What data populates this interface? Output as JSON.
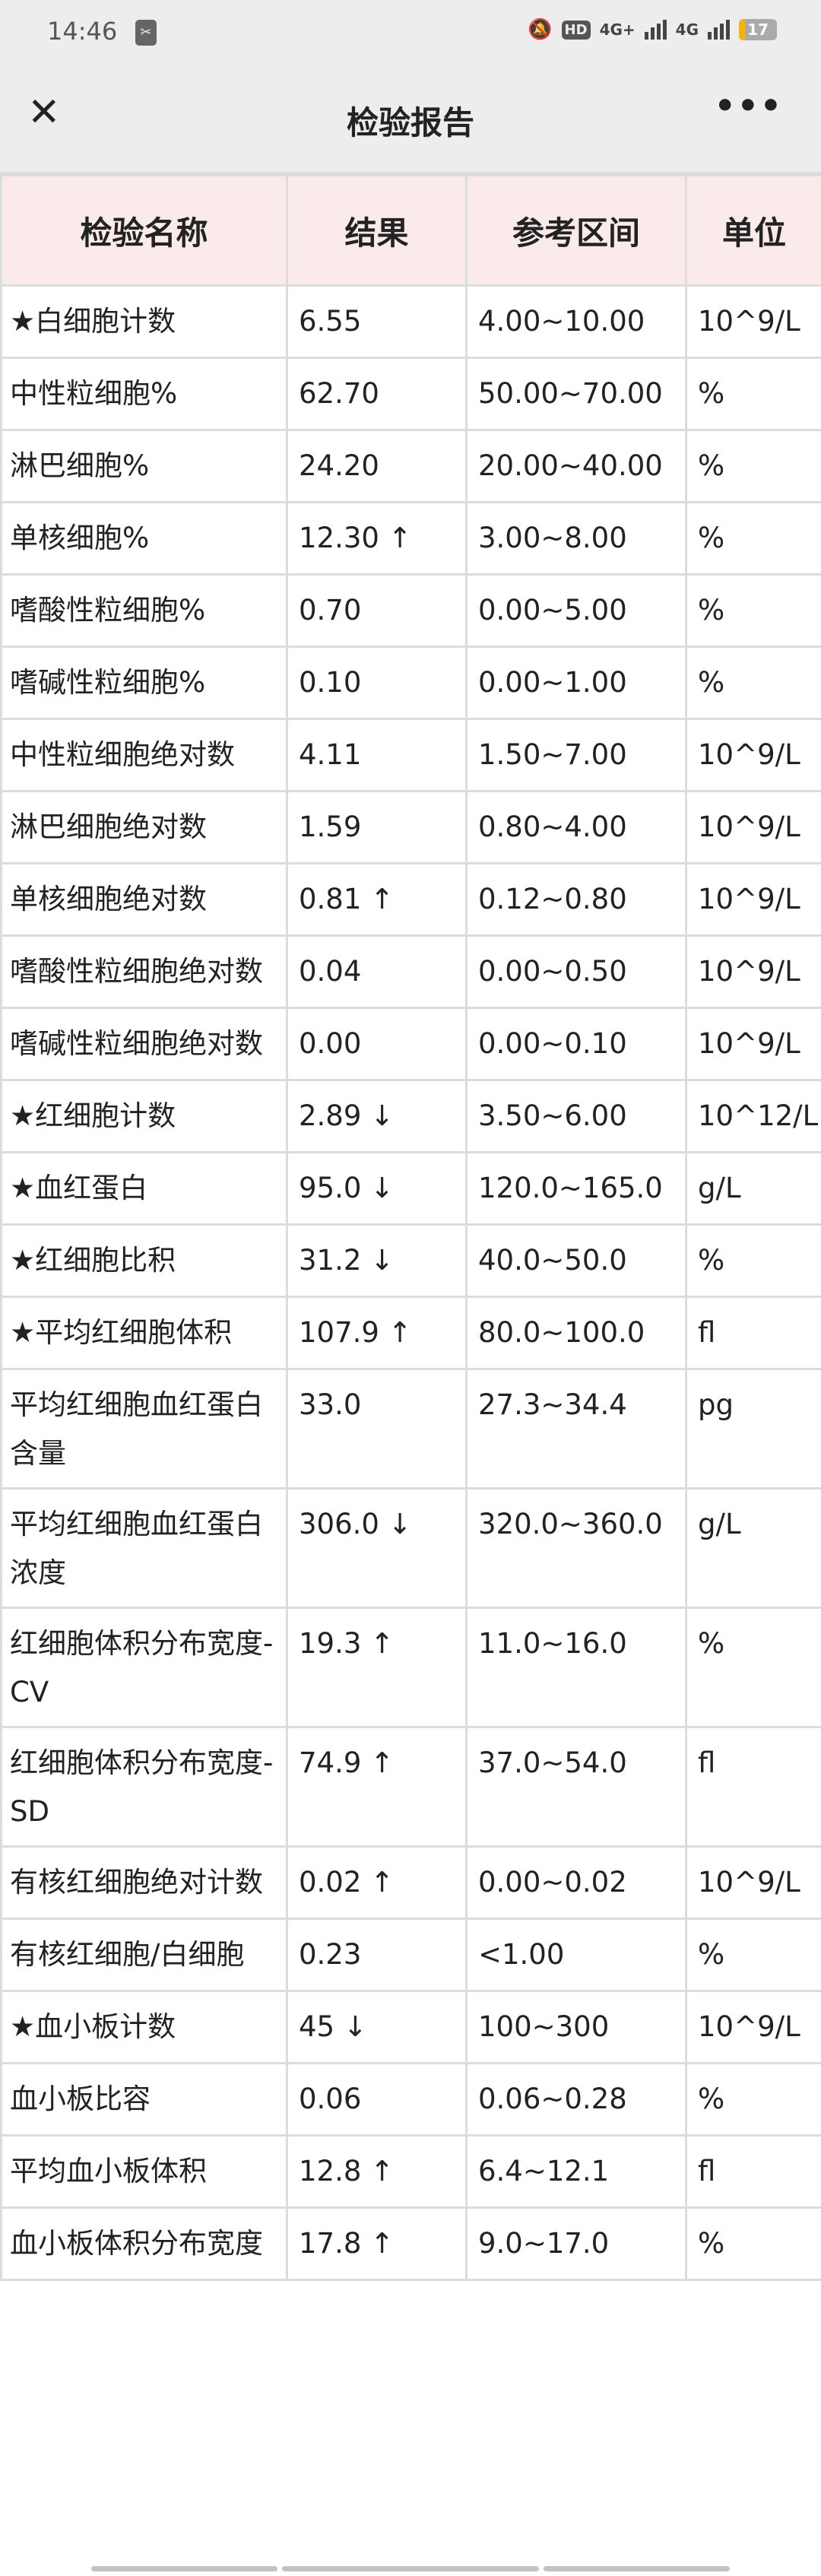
{
  "status_bar": {
    "time": "14:46",
    "network1": "4G+",
    "network2": "4G",
    "hd": "HD",
    "battery": "17"
  },
  "nav": {
    "title": "检验报告",
    "close_icon": "close-icon",
    "more_icon": "more-icon"
  },
  "table": {
    "headers": [
      "检验名称",
      "结果",
      "参考区间",
      "单位"
    ],
    "rows": [
      {
        "name": "★白细胞计数",
        "result": "6.55",
        "range": "4.00~10.00",
        "unit": "10^9/L"
      },
      {
        "name": "中性粒细胞%",
        "result": "62.70",
        "range": "50.00~70.00",
        "unit": "%"
      },
      {
        "name": "淋巴细胞%",
        "result": "24.20",
        "range": "20.00~40.00",
        "unit": "%"
      },
      {
        "name": "单核细胞%",
        "result": "12.30 ↑",
        "range": "3.00~8.00",
        "unit": "%"
      },
      {
        "name": "嗜酸性粒细胞%",
        "result": "0.70",
        "range": "0.00~5.00",
        "unit": "%"
      },
      {
        "name": "嗜碱性粒细胞%",
        "result": "0.10",
        "range": "0.00~1.00",
        "unit": "%"
      },
      {
        "name": "中性粒细胞绝对数",
        "result": "4.11",
        "range": "1.50~7.00",
        "unit": "10^9/L"
      },
      {
        "name": "淋巴细胞绝对数",
        "result": "1.59",
        "range": "0.80~4.00",
        "unit": "10^9/L"
      },
      {
        "name": "单核细胞绝对数",
        "result": "0.81 ↑",
        "range": "0.12~0.80",
        "unit": "10^9/L"
      },
      {
        "name": "嗜酸性粒细胞绝对数",
        "result": "0.04",
        "range": "0.00~0.50",
        "unit": "10^9/L"
      },
      {
        "name": "嗜碱性粒细胞绝对数",
        "result": "0.00",
        "range": "0.00~0.10",
        "unit": "10^9/L"
      },
      {
        "name": "★红细胞计数",
        "result": "2.89 ↓",
        "range": "3.50~6.00",
        "unit": "10^12/L"
      },
      {
        "name": "★血红蛋白",
        "result": "95.0 ↓",
        "range": "120.0~165.0",
        "unit": "g/L"
      },
      {
        "name": "★红细胞比积",
        "result": "31.2 ↓",
        "range": "40.0~50.0",
        "unit": "%"
      },
      {
        "name": "★平均红细胞体积",
        "result": "107.9 ↑",
        "range": "80.0~100.0",
        "unit": "fl"
      },
      {
        "name": "平均红细胞血红蛋白含量",
        "result": "33.0",
        "range": "27.3~34.4",
        "unit": "pg"
      },
      {
        "name": "平均红细胞血红蛋白浓度",
        "result": "306.0 ↓",
        "range": "320.0~360.0",
        "unit": "g/L"
      },
      {
        "name": "红细胞体积分布宽度-CV",
        "result": "19.3 ↑",
        "range": "11.0~16.0",
        "unit": "%"
      },
      {
        "name": "红细胞体积分布宽度-SD",
        "result": "74.9 ↑",
        "range": "37.0~54.0",
        "unit": "fl"
      },
      {
        "name": "有核红细胞绝对计数",
        "result": "0.02 ↑",
        "range": "0.00~0.02",
        "unit": "10^9/L"
      },
      {
        "name": "有核红细胞/白细胞",
        "result": "0.23",
        "range": "<1.00",
        "unit": "%"
      },
      {
        "name": "★血小板计数",
        "result": "45 ↓",
        "range": "100~300",
        "unit": "10^9/L"
      },
      {
        "name": "血小板比容",
        "result": "0.06",
        "range": "0.06~0.28",
        "unit": "%"
      },
      {
        "name": "平均血小板体积",
        "result": "12.8 ↑",
        "range": "6.4~12.1",
        "unit": "fl"
      },
      {
        "name": "血小板体积分布宽度",
        "result": "17.8 ↑",
        "range": "9.0~17.0",
        "unit": "%"
      }
    ]
  },
  "colors": {
    "header_bg": "#fbeaea",
    "bar_bg": "#ededed",
    "border": "#dcdcdc"
  }
}
